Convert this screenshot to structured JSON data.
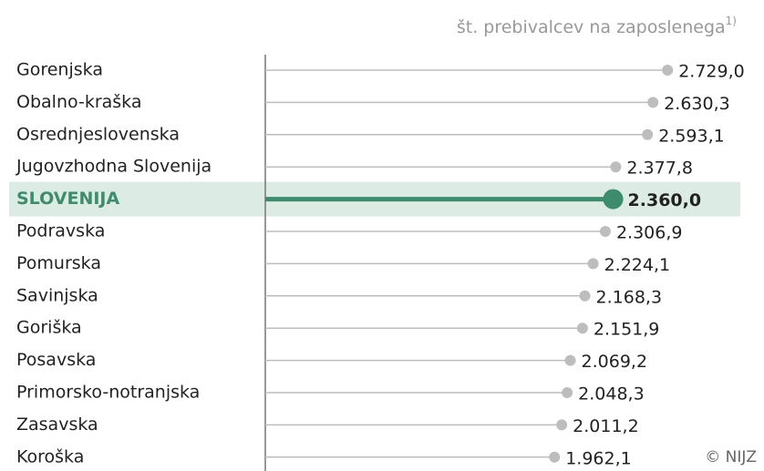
{
  "chart_data": {
    "type": "lollipop",
    "subtitle": "št. prebivalcev na zaposlenega",
    "subtitle_note": "1)",
    "source": "© NIJZ",
    "categories": [
      "Gorenjska",
      "Obalno-kraška",
      "Osrednjeslovenska",
      "Jugovzhodna Slovenija",
      "SLOVENIJA",
      "Podravska",
      "Pomurska",
      "Savinjska",
      "Goriška",
      "Posavska",
      "Primorsko-notranjska",
      "Zasavska",
      "Koroška"
    ],
    "values": [
      2729.0,
      2630.3,
      2593.1,
      2377.8,
      2360.0,
      2306.9,
      2224.1,
      2168.3,
      2151.9,
      2069.2,
      2048.3,
      2011.2,
      1962.1
    ],
    "value_labels": [
      "2.729,0",
      "2.630,3",
      "2.593,1",
      "2.377,8",
      "2.360,0",
      "2.306,9",
      "2.224,1",
      "2.168,3",
      "2.151,9",
      "2.069,2",
      "2.048,3",
      "2.011,2",
      "1.962,1"
    ],
    "color": "#bdbdbd",
    "highlight": "SLOVENIJA",
    "highlight_color": "#3d8c6e",
    "highlight_band_color": "#dcebe4",
    "xlim": [
      0,
      3000
    ]
  }
}
